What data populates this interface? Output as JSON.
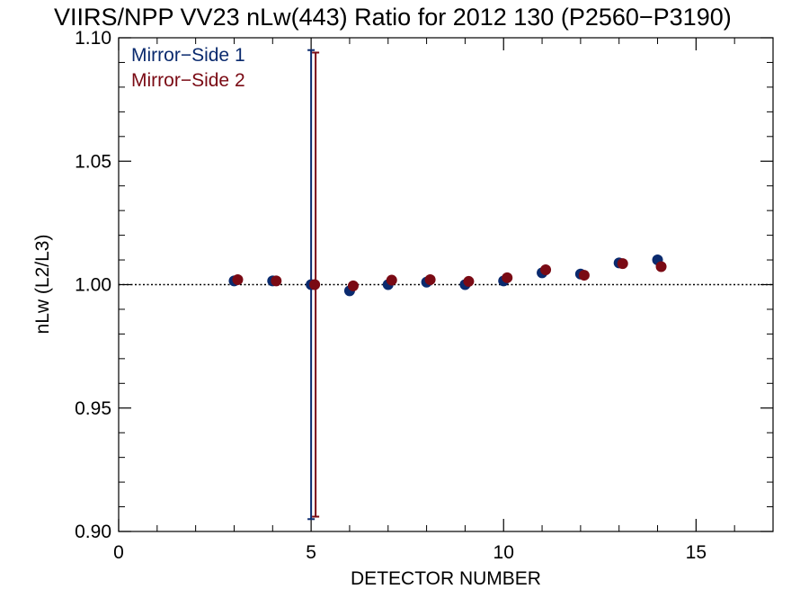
{
  "chart_data": {
    "type": "scatter",
    "title": "VIIRS/NPP VV23 nLw(443) Ratio for 2012 130 (P2560−P3190)",
    "xlabel": "DETECTOR NUMBER",
    "ylabel": "nLw (L2/L3)",
    "xlim": [
      0,
      17
    ],
    "ylim": [
      0.9,
      1.1
    ],
    "x_ticks": [
      0,
      5,
      10,
      15
    ],
    "x_tick_labels": [
      "0",
      "5",
      "10",
      "15"
    ],
    "y_ticks": [
      0.9,
      0.95,
      1.0,
      1.05,
      1.1
    ],
    "y_tick_labels": [
      "0.90",
      "0.95",
      "1.00",
      "1.05",
      "1.10"
    ],
    "reference_line": 1.0,
    "legend_position": "top-left",
    "grid": false,
    "series": [
      {
        "name": "Mirror−Side 1",
        "color": "#0a2a6e",
        "x": [
          3,
          4,
          5,
          6,
          7,
          8,
          9,
          10,
          11,
          12,
          13,
          14
        ],
        "y": [
          1.0015,
          1.0015,
          1.0,
          0.9975,
          1.0,
          1.001,
          1.0,
          1.0015,
          1.0048,
          1.0043,
          1.0088,
          1.01
        ],
        "error_bars": [
          {
            "x": 5,
            "low": 0.905,
            "high": 1.095
          }
        ]
      },
      {
        "name": "Mirror−Side 2",
        "color": "#7a0a14",
        "x": [
          3,
          4,
          5,
          6,
          7,
          8,
          9,
          10,
          11,
          12,
          13,
          14
        ],
        "y": [
          1.002,
          1.0015,
          1.0,
          0.9995,
          1.0018,
          1.002,
          1.0013,
          1.0028,
          1.006,
          1.0038,
          1.0085,
          1.0073
        ],
        "error_bars": [
          {
            "x": 5,
            "low": 0.906,
            "high": 1.094
          }
        ]
      }
    ]
  }
}
